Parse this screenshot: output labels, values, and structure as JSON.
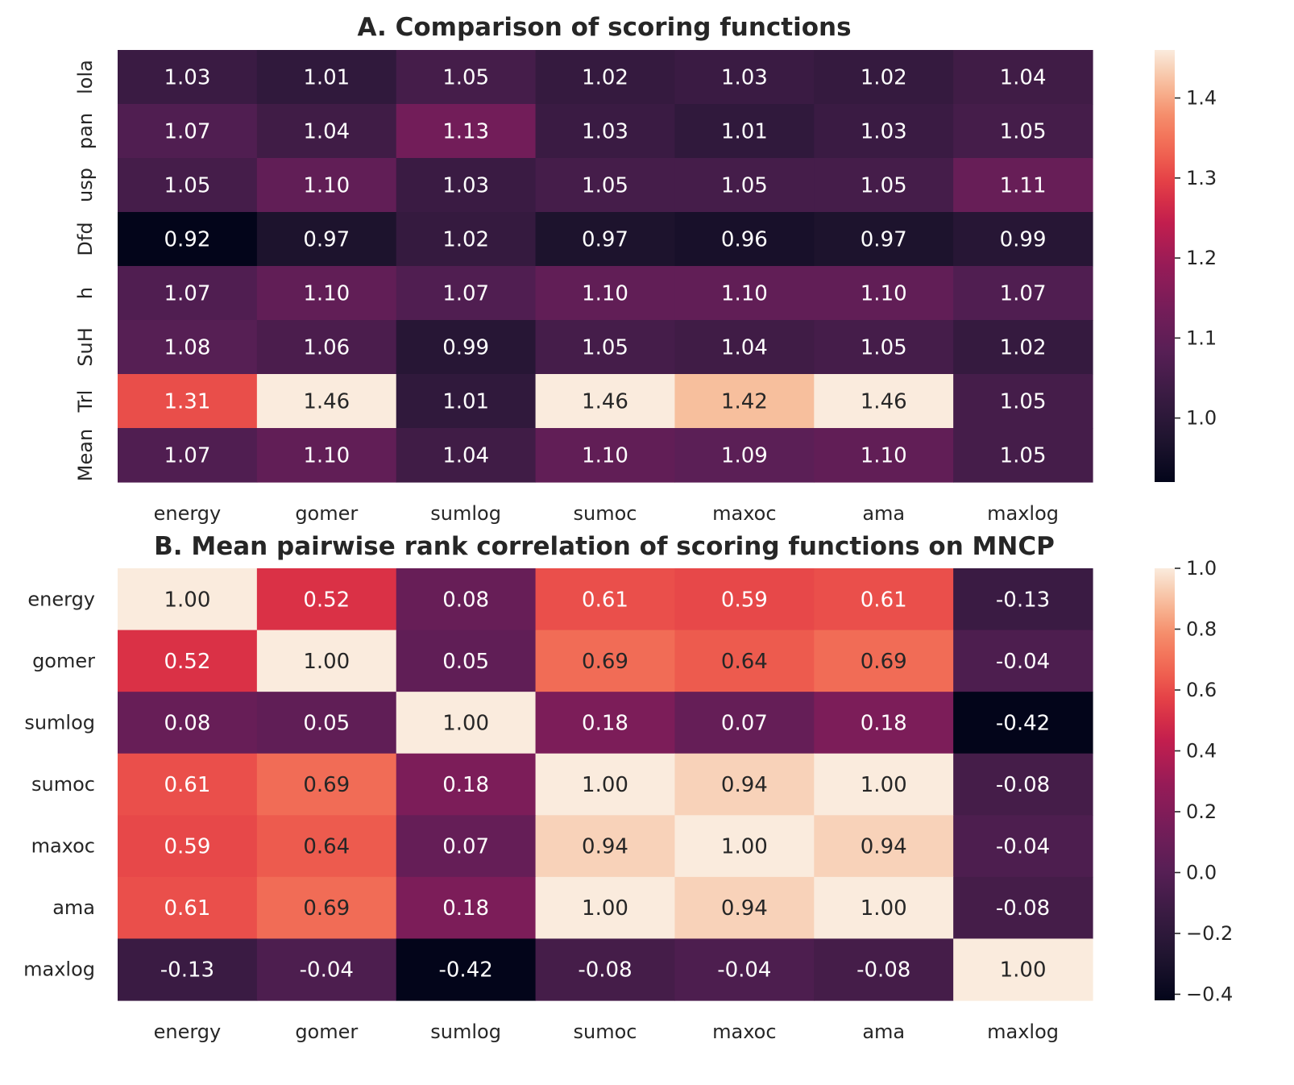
{
  "chart_data": [
    {
      "type": "heatmap",
      "title": "A. Comparison of scoring functions",
      "xlabel": "",
      "ylabel": "",
      "x_categories": [
        "energy",
        "gomer",
        "sumlog",
        "sumoc",
        "maxoc",
        "ama",
        "maxlog"
      ],
      "y_categories": [
        "lola",
        "pan",
        "usp",
        "Dfd",
        "h",
        "SuH",
        "Trl",
        "Mean"
      ],
      "values": [
        [
          1.03,
          1.01,
          1.05,
          1.02,
          1.03,
          1.02,
          1.04
        ],
        [
          1.07,
          1.04,
          1.13,
          1.03,
          1.01,
          1.03,
          1.05
        ],
        [
          1.05,
          1.1,
          1.03,
          1.05,
          1.05,
          1.05,
          1.11
        ],
        [
          0.92,
          0.97,
          1.02,
          0.97,
          0.96,
          0.97,
          0.99
        ],
        [
          1.07,
          1.1,
          1.07,
          1.1,
          1.1,
          1.1,
          1.07
        ],
        [
          1.08,
          1.06,
          0.99,
          1.05,
          1.04,
          1.05,
          1.02
        ],
        [
          1.31,
          1.46,
          1.01,
          1.46,
          1.42,
          1.46,
          1.05
        ],
        [
          1.07,
          1.1,
          1.04,
          1.1,
          1.09,
          1.1,
          1.05
        ]
      ],
      "colorbar": {
        "range": [
          0.92,
          1.46
        ],
        "ticks": [
          1.0,
          1.1,
          1.2,
          1.3,
          1.4
        ],
        "tick_labels": [
          "1.0",
          "1.1",
          "1.2",
          "1.3",
          "1.4"
        ],
        "colormap": "rocket"
      }
    },
    {
      "type": "heatmap",
      "title": "B. Mean pairwise rank correlation of scoring functions on MNCP",
      "xlabel": "",
      "ylabel": "",
      "x_categories": [
        "energy",
        "gomer",
        "sumlog",
        "sumoc",
        "maxoc",
        "ama",
        "maxlog"
      ],
      "y_categories": [
        "energy",
        "gomer",
        "sumlog",
        "sumoc",
        "maxoc",
        "ama",
        "maxlog"
      ],
      "values": [
        [
          1.0,
          0.52,
          0.08,
          0.61,
          0.59,
          0.61,
          -0.13
        ],
        [
          0.52,
          1.0,
          0.05,
          0.69,
          0.64,
          0.69,
          -0.04
        ],
        [
          0.08,
          0.05,
          1.0,
          0.18,
          0.07,
          0.18,
          -0.42
        ],
        [
          0.61,
          0.69,
          0.18,
          1.0,
          0.94,
          1.0,
          -0.08
        ],
        [
          0.59,
          0.64,
          0.07,
          0.94,
          1.0,
          0.94,
          -0.04
        ],
        [
          0.61,
          0.69,
          0.18,
          1.0,
          0.94,
          1.0,
          -0.08
        ],
        [
          -0.13,
          -0.04,
          -0.42,
          -0.08,
          -0.04,
          -0.08,
          1.0
        ]
      ],
      "colorbar": {
        "range": [
          -0.42,
          1.0
        ],
        "ticks": [
          -0.4,
          -0.2,
          0.0,
          0.2,
          0.4,
          0.6,
          0.8,
          1.0
        ],
        "tick_labels": [
          "−0.4",
          "−0.2",
          "0.0",
          "0.2",
          "0.4",
          "0.6",
          "0.8",
          "1.0"
        ],
        "colormap": "rocket"
      }
    }
  ]
}
